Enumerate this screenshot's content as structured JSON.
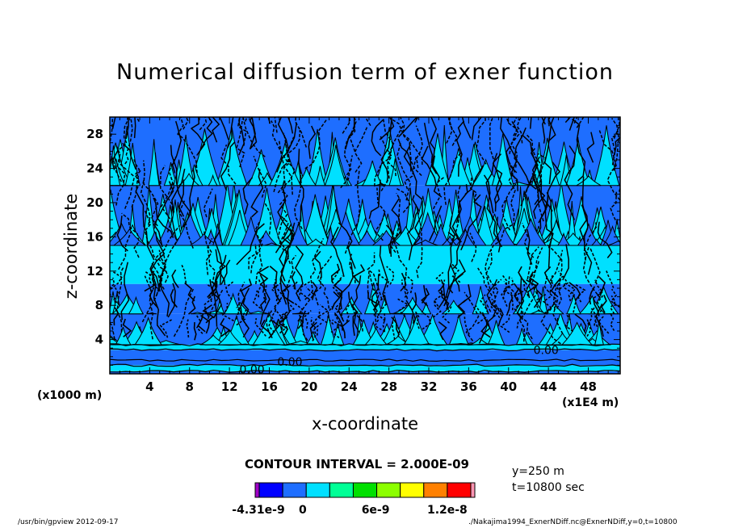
{
  "chart_data": {
    "type": "heatmap",
    "title": "Numerical diffusion term of exner function",
    "xlabel": "x-coordinate",
    "ylabel": "z-coordinate",
    "x_unit_left": "(x1000 m)",
    "x_unit_right": "(x1E4 m)",
    "xlim": [
      0,
      51.2
    ],
    "ylim": [
      0,
      30
    ],
    "x_ticks": [
      4,
      8,
      12,
      16,
      20,
      24,
      28,
      32,
      36,
      40,
      44,
      48
    ],
    "y_ticks": [
      4,
      8,
      12,
      16,
      20,
      24,
      28
    ],
    "contour_labels": [
      {
        "text": "0.00",
        "x": 16.8,
        "z": 1.4
      },
      {
        "text": "0.00",
        "x": 13.0,
        "z": 0.5
      },
      {
        "text": "0.00",
        "x": 42.5,
        "z": 2.8
      }
    ],
    "bands": [
      {
        "z0": 0.0,
        "z1": 0.3,
        "level": "blue"
      },
      {
        "z0": 0.3,
        "z1": 1.0,
        "level": "cyan"
      },
      {
        "z0": 1.0,
        "z1": 1.6,
        "level": "blue"
      },
      {
        "z0": 1.6,
        "z1": 2.8,
        "level": "blue"
      },
      {
        "z0": 2.8,
        "z1": 3.4,
        "level": "cyan"
      },
      {
        "z0": 3.4,
        "z1": 7.0,
        "level": "mixed"
      },
      {
        "z0": 7.0,
        "z1": 10.5,
        "level": "blue"
      },
      {
        "z0": 10.5,
        "z1": 15.5,
        "level": "cyan"
      },
      {
        "z0": 15.5,
        "z1": 22.0,
        "level": "mixed"
      },
      {
        "z0": 22.0,
        "z1": 30.0,
        "level": "blue"
      }
    ],
    "colorbar": {
      "colors": [
        "#a000c8",
        "#0000ff",
        "#1e6eff",
        "#00e0ff",
        "#00ff96",
        "#00e000",
        "#8cff00",
        "#ffff00",
        "#ff8000",
        "#ff0000",
        "#ff96b4"
      ],
      "labels": [
        "-4.31e-9",
        "0",
        "6e-9",
        "1.2e-8"
      ]
    },
    "contour_interval": "CONTOUR INTERVAL = 2.000E-09",
    "notes": [
      "y=250 m",
      "t=10800 sec"
    ],
    "footer_left": "/usr/bin/gpview   2012-09-17",
    "footer_right": "./Nakajima1994_ExnerNDiff.nc@ExnerNDiff,y=0,t=10800"
  }
}
